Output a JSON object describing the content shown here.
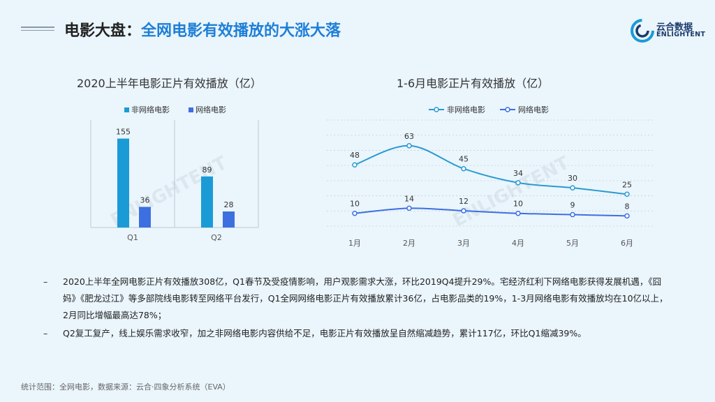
{
  "header": {
    "title_part1": "电影大盘：",
    "title_part2": "全网电影有效播放的大涨大落"
  },
  "logo": {
    "text_cn": "云合数据",
    "text_en": "ENLIGHTENT"
  },
  "chart_data": [
    {
      "type": "bar",
      "title": "2020上半年电影正片有效播放（亿）",
      "categories": [
        "Q1",
        "Q2"
      ],
      "series": [
        {
          "name": "非网络电影",
          "values": [
            155,
            89
          ],
          "color": "#1a9bd6"
        },
        {
          "name": "网络电影",
          "values": [
            36,
            28
          ],
          "color": "#3d6fe0"
        }
      ],
      "ylim": [
        0,
        180
      ],
      "legend": "top"
    },
    {
      "type": "line",
      "title": "1-6月电影正片有效播放（亿）",
      "categories": [
        "1月",
        "2月",
        "3月",
        "4月",
        "5月",
        "6月"
      ],
      "series": [
        {
          "name": "非网络电影",
          "values": [
            48,
            63,
            45,
            34,
            30,
            25
          ],
          "color": "#2a9ad0"
        },
        {
          "name": "网络电影",
          "values": [
            10,
            14,
            12,
            10,
            9,
            8
          ],
          "color": "#3d6fe0"
        }
      ],
      "ylim": [
        0,
        70
      ],
      "legend": "top"
    }
  ],
  "bullets": [
    {
      "dash": "–",
      "text": "2020上半年全网电影正片有效播放308亿，Q1春节及受疫情影响，用户观影需求大涨，环比2019Q4提升29%。宅经济红利下网络电影获得发展机遇，《囧妈》《肥龙过江》等多部院线电影转至网络平台发行，Q1全网网络电影正片有效播放累计36亿，占电影品类的19%，1-3月网络电影有效播放均在10亿以上，2月同比增幅最高达78%；"
    },
    {
      "dash": "–",
      "text": " Q2复工复产，线上娱乐需求收窄，加之非网络电影内容供给不足，电影正片有效播放呈自然缩减趋势，累计117亿，环比Q1缩减39%。"
    }
  ],
  "footer": "统计范围：全网电影，数据来源：云合·四象分析系统（EVA）"
}
